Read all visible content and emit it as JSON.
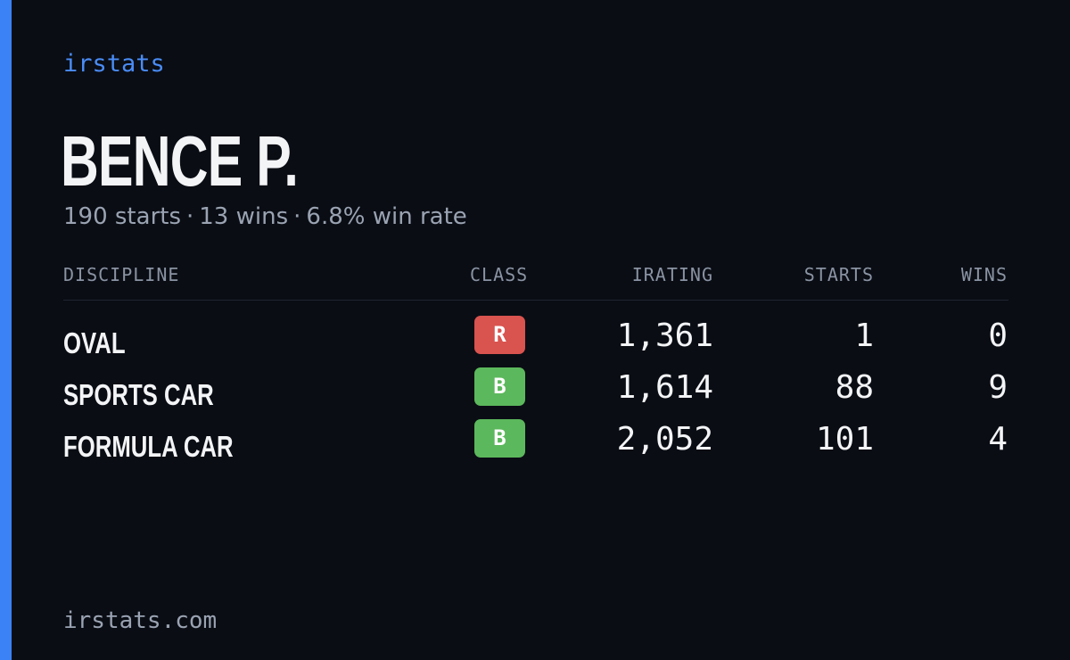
{
  "brand": "irstats",
  "driver": {
    "name": "BENCE P."
  },
  "summary": {
    "starts": "190 starts",
    "wins": "13 wins",
    "win_rate": "6.8% win rate",
    "separator": "·"
  },
  "table": {
    "headers": {
      "discipline": "DISCIPLINE",
      "class": "CLASS",
      "irating": "IRATING",
      "starts": "STARTS",
      "wins": "WINS"
    },
    "rows": [
      {
        "discipline": "OVAL",
        "class": "R",
        "class_color": "#d9534f",
        "irating": "1,361",
        "starts": "1",
        "wins": "0"
      },
      {
        "discipline": "SPORTS CAR",
        "class": "B",
        "class_color": "#5cb85c",
        "irating": "1,614",
        "starts": "88",
        "wins": "9"
      },
      {
        "discipline": "FORMULA CAR",
        "class": "B",
        "class_color": "#5cb85c",
        "irating": "2,052",
        "starts": "101",
        "wins": "4"
      }
    ]
  },
  "footer": "irstats.com",
  "colors": {
    "accent": "#3b82f6",
    "background": "#0a0d14"
  }
}
